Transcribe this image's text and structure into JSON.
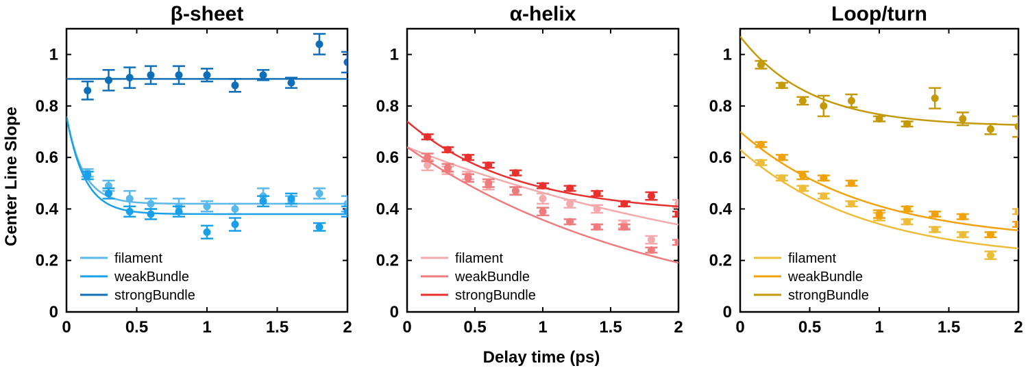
{
  "figure": {
    "ylabel": "Center Line Slope",
    "xlabel": "Delay time (ps)"
  },
  "chart_data": [
    {
      "type": "scatter",
      "title": "β-sheet",
      "xlabel": "Delay time (ps)",
      "ylabel": "Center Line Slope",
      "xlim": [
        0,
        2
      ],
      "ylim": [
        0,
        1.1
      ],
      "xticks": [
        "0",
        "0.5",
        "1",
        "1.5",
        "2"
      ],
      "yticks": [
        "0",
        "0.2",
        "0.4",
        "0.6",
        "0.8",
        "1"
      ],
      "legend_position": "bottom-left",
      "series": [
        {
          "name": "filament",
          "color": "#5ab8ea",
          "x": [
            0.15,
            0.3,
            0.45,
            0.6,
            0.8,
            1.0,
            1.2,
            1.4,
            1.6,
            1.8,
            2.0
          ],
          "y": [
            0.54,
            0.49,
            0.44,
            0.42,
            0.41,
            0.41,
            0.4,
            0.45,
            0.43,
            0.46,
            0.42
          ],
          "err": [
            0.015,
            0.02,
            0.03,
            0.02,
            0.03,
            0.02,
            0.02,
            0.03,
            0.02,
            0.02,
            0.03
          ],
          "fit": {
            "a": 0.34,
            "tau": 0.12,
            "c": 0.42
          }
        },
        {
          "name": "weakBundle",
          "color": "#1aa0e8",
          "x": [
            0.15,
            0.3,
            0.45,
            0.6,
            0.8,
            1.0,
            1.2,
            1.4,
            1.6,
            1.8,
            2.0
          ],
          "y": [
            0.53,
            0.46,
            0.39,
            0.38,
            0.39,
            0.31,
            0.34,
            0.43,
            0.44,
            0.33,
            0.39
          ],
          "err": [
            0.015,
            0.02,
            0.02,
            0.02,
            0.02,
            0.025,
            0.025,
            0.02,
            0.02,
            0.015,
            0.02
          ],
          "fit": {
            "a": 0.38,
            "tau": 0.13,
            "c": 0.38
          }
        },
        {
          "name": "strongBundle",
          "color": "#0e6fb8",
          "x": [
            0.15,
            0.3,
            0.45,
            0.6,
            0.8,
            1.0,
            1.2,
            1.4,
            1.6,
            1.8,
            2.0
          ],
          "y": [
            0.86,
            0.9,
            0.91,
            0.92,
            0.92,
            0.92,
            0.88,
            0.92,
            0.89,
            1.04,
            0.97
          ],
          "err": [
            0.035,
            0.04,
            0.04,
            0.035,
            0.035,
            0.025,
            0.025,
            0.02,
            0.02,
            0.04,
            0.04
          ],
          "fit": {
            "a": 0.0,
            "tau": 1.0,
            "c": 0.905
          }
        }
      ]
    },
    {
      "type": "scatter",
      "title": "α-helix",
      "xlabel": "Delay time (ps)",
      "ylabel": "",
      "xlim": [
        0,
        2
      ],
      "ylim": [
        0,
        1.1
      ],
      "xticks": [
        "0",
        "0.5",
        "1",
        "1.5",
        "2"
      ],
      "yticks": [
        "0",
        "0.2",
        "0.4",
        "0.6",
        "0.8",
        "1"
      ],
      "legend_position": "bottom-left",
      "series": [
        {
          "name": "filament",
          "color": "#f4a9ac",
          "x": [
            0.15,
            0.3,
            0.45,
            0.6,
            0.8,
            1.0,
            1.2,
            1.4,
            1.6,
            1.8,
            2.0
          ],
          "y": [
            0.57,
            0.55,
            0.53,
            0.49,
            0.47,
            0.44,
            0.42,
            0.4,
            0.34,
            0.28,
            0.42
          ],
          "err": [
            0.02,
            0.015,
            0.015,
            0.015,
            0.015,
            0.02,
            0.015,
            0.015,
            0.015,
            0.015,
            0.015
          ],
          "fit": {
            "a": 0.59,
            "tau": 2.8,
            "c": 0.05
          }
        },
        {
          "name": "weakBundle",
          "color": "#ee7b7e",
          "x": [
            0.15,
            0.3,
            0.45,
            0.6,
            0.8,
            1.0,
            1.2,
            1.4,
            1.6,
            1.8,
            2.0
          ],
          "y": [
            0.6,
            0.56,
            0.52,
            0.5,
            0.47,
            0.39,
            0.35,
            0.33,
            0.33,
            0.24,
            0.27
          ],
          "err": [
            0.015,
            0.015,
            0.015,
            0.015,
            0.015,
            0.015,
            0.01,
            0.01,
            0.01,
            0.01,
            0.01
          ],
          "fit": {
            "a": 0.69,
            "tau": 1.9,
            "c": -0.05
          }
        },
        {
          "name": "strongBundle",
          "color": "#e8302e",
          "x": [
            0.15,
            0.3,
            0.45,
            0.6,
            0.8,
            1.0,
            1.2,
            1.4,
            1.6,
            1.8,
            2.0
          ],
          "y": [
            0.68,
            0.63,
            0.6,
            0.57,
            0.54,
            0.49,
            0.48,
            0.46,
            0.42,
            0.45,
            0.38
          ],
          "err": [
            0.01,
            0.01,
            0.01,
            0.01,
            0.01,
            0.01,
            0.01,
            0.01,
            0.01,
            0.015,
            0.01
          ],
          "fit": {
            "a": 0.36,
            "tau": 0.8,
            "c": 0.38
          }
        }
      ]
    },
    {
      "type": "scatter",
      "title": "Loop/turn",
      "xlabel": "Delay time (ps)",
      "ylabel": "",
      "xlim": [
        0,
        2
      ],
      "ylim": [
        0,
        1.1
      ],
      "xticks": [
        "0",
        "0.5",
        "1",
        "1.5",
        "2"
      ],
      "yticks": [
        "0",
        "0.2",
        "0.4",
        "0.6",
        "0.8",
        "1"
      ],
      "legend_position": "bottom-left",
      "series": [
        {
          "name": "filament",
          "color": "#ecbc3a",
          "x": [
            0.15,
            0.3,
            0.45,
            0.6,
            0.8,
            1.0,
            1.2,
            1.4,
            1.6,
            1.8,
            2.0
          ],
          "y": [
            0.58,
            0.52,
            0.48,
            0.45,
            0.42,
            0.37,
            0.35,
            0.32,
            0.3,
            0.22,
            0.39
          ],
          "err": [
            0.01,
            0.01,
            0.01,
            0.01,
            0.01,
            0.015,
            0.01,
            0.01,
            0.01,
            0.015,
            0.01
          ],
          "fit": {
            "a": 0.43,
            "tau": 0.9,
            "c": 0.2
          }
        },
        {
          "name": "weakBundle",
          "color": "#f0a20c",
          "x": [
            0.15,
            0.3,
            0.45,
            0.6,
            0.8,
            1.0,
            1.2,
            1.4,
            1.6,
            1.8,
            2.0
          ],
          "y": [
            0.65,
            0.6,
            0.53,
            0.52,
            0.5,
            0.38,
            0.4,
            0.38,
            0.37,
            0.3,
            0.34
          ],
          "err": [
            0.01,
            0.01,
            0.015,
            0.01,
            0.01,
            0.015,
            0.01,
            0.01,
            0.01,
            0.01,
            0.01
          ],
          "fit": {
            "a": 0.43,
            "tau": 0.9,
            "c": 0.27
          }
        },
        {
          "name": "strongBundle",
          "color": "#c49a0a",
          "x": [
            0.15,
            0.3,
            0.45,
            0.6,
            0.8,
            1.0,
            1.2,
            1.4,
            1.6,
            1.8,
            2.0
          ],
          "y": [
            0.96,
            0.88,
            0.82,
            0.8,
            0.82,
            0.75,
            0.73,
            0.83,
            0.75,
            0.71,
            0.72
          ],
          "err": [
            0.015,
            0.01,
            0.015,
            0.04,
            0.025,
            0.01,
            0.01,
            0.04,
            0.025,
            0.02,
            0.04
          ],
          "fit": {
            "a": 0.35,
            "tau": 0.5,
            "c": 0.72
          }
        }
      ]
    }
  ]
}
